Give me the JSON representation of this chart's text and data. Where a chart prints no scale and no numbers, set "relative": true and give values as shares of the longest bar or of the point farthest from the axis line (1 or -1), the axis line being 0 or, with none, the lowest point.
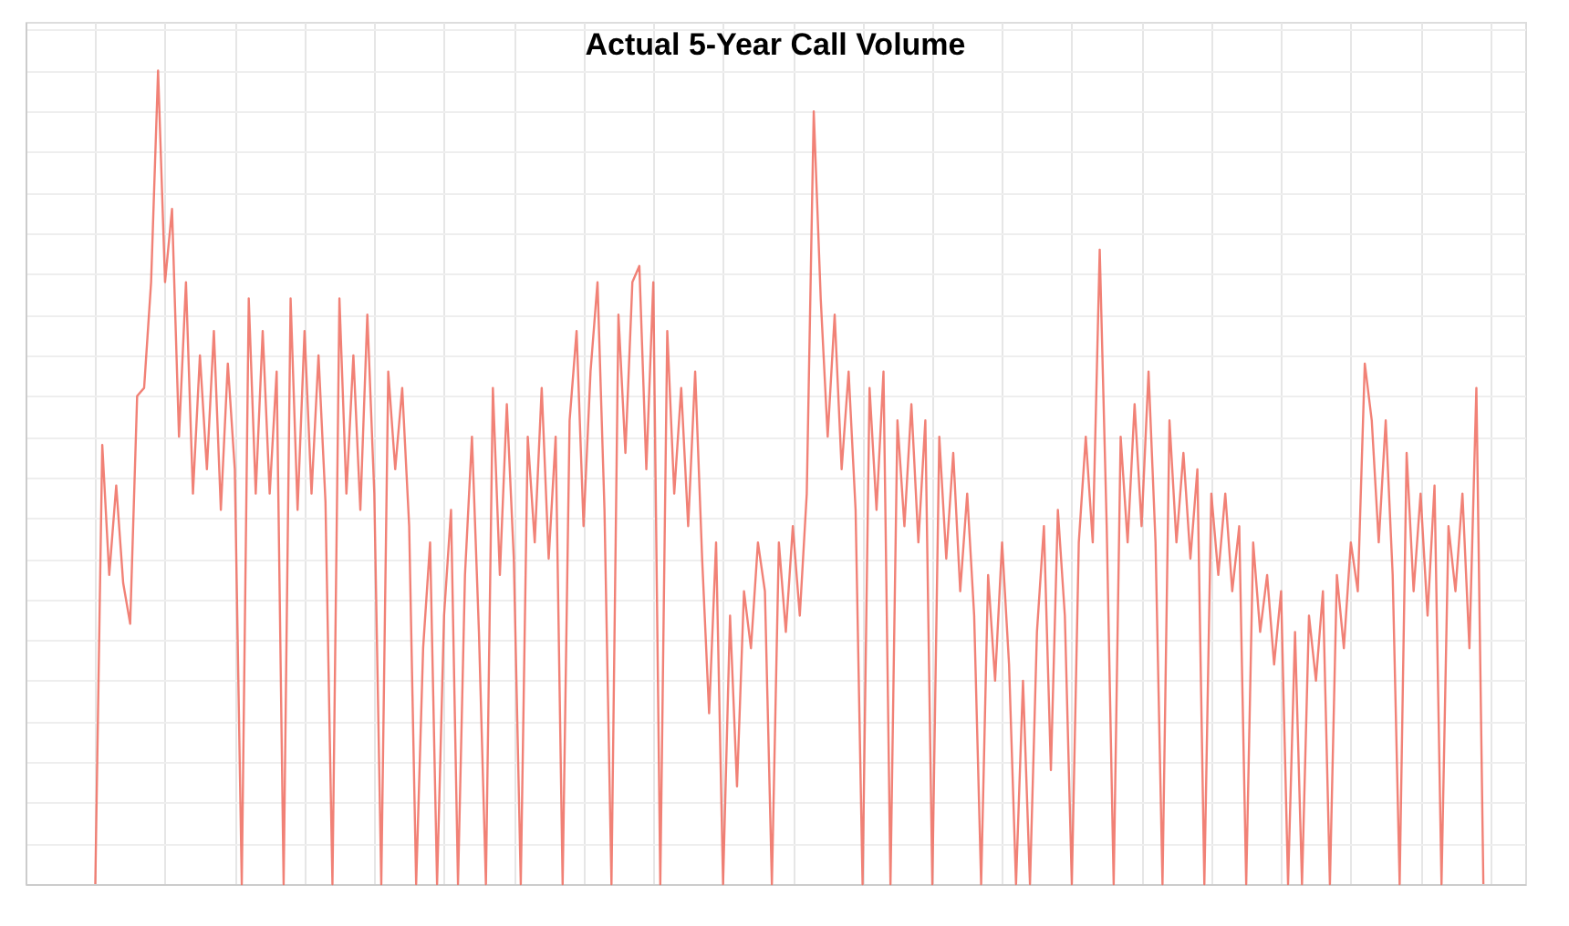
{
  "chart_data": {
    "type": "line",
    "title": "Actual 5-Year Call Volume",
    "relative": true,
    "grid": true,
    "tick_labels": false,
    "categories": [
      null,
      null,
      null,
      null,
      null,
      null,
      null,
      null,
      null,
      null,
      null,
      null,
      null,
      null,
      null,
      null,
      null,
      null,
      null,
      null,
      null,
      null,
      null,
      null,
      null,
      null,
      null,
      null,
      null,
      null,
      null,
      null,
      null,
      null,
      null,
      null,
      null,
      null,
      null,
      null,
      null,
      null,
      null,
      null,
      null,
      null,
      null,
      null,
      null,
      null,
      null,
      null,
      null,
      null,
      null,
      null,
      null,
      null,
      null,
      null,
      null,
      null,
      null,
      null,
      null,
      null,
      null,
      null,
      null,
      null,
      null,
      null,
      null,
      null,
      null,
      null,
      null,
      null,
      null,
      null,
      null,
      null,
      null,
      null,
      null,
      null,
      null,
      null,
      null,
      null,
      null,
      null,
      null,
      null,
      null,
      null,
      null,
      null,
      null,
      null,
      null,
      null,
      null,
      null,
      null,
      null,
      null,
      null,
      null,
      null,
      null,
      null,
      null,
      null,
      null,
      null,
      null,
      null,
      null,
      null,
      null,
      null,
      null,
      null,
      null,
      null,
      null,
      null,
      null,
      null,
      null,
      null,
      null,
      null,
      null,
      null,
      null,
      null,
      null,
      null,
      null,
      null,
      null,
      null,
      null,
      null,
      null,
      null,
      null,
      null,
      null,
      null,
      null,
      null,
      null,
      null,
      null,
      null,
      null,
      null,
      null,
      null,
      null,
      null,
      null,
      null,
      null,
      null,
      null,
      null,
      null,
      null,
      null,
      null,
      null,
      null,
      null,
      null,
      null,
      null,
      null,
      null,
      null,
      null,
      null,
      null,
      null,
      null,
      null,
      null,
      null,
      null,
      null,
      null,
      null,
      null,
      null,
      null,
      null,
      null
    ],
    "series": [
      {
        "color": "#ee6b5e",
        "values": [
          0,
          0.54,
          0.38,
          0.49,
          0.37,
          0.32,
          0.6,
          0.61,
          0.74,
          1.0,
          0.74,
          0.83,
          0.55,
          0.74,
          0.48,
          0.65,
          0.51,
          0.68,
          0.46,
          0.64,
          0.51,
          0,
          0.72,
          0.48,
          0.68,
          0.48,
          0.63,
          0,
          0.72,
          0.46,
          0.68,
          0.48,
          0.65,
          0.47,
          0,
          0.72,
          0.48,
          0.65,
          0.46,
          0.7,
          0.48,
          0,
          0.63,
          0.51,
          0.61,
          0.44,
          0,
          0.29,
          0.42,
          0,
          0.33,
          0.46,
          0,
          0.38,
          0.55,
          0.31,
          0,
          0.61,
          0.38,
          0.59,
          0.4,
          0,
          0.55,
          0.42,
          0.61,
          0.4,
          0.55,
          0,
          0.57,
          0.68,
          0.44,
          0.63,
          0.74,
          0.46,
          0,
          0.7,
          0.53,
          0.74,
          0.76,
          0.51,
          0.74,
          0,
          0.68,
          0.48,
          0.61,
          0.44,
          0.63,
          0.4,
          0.21,
          0.42,
          0,
          0.33,
          0.12,
          0.36,
          0.29,
          0.42,
          0.36,
          0,
          0.42,
          0.31,
          0.44,
          0.33,
          0.48,
          0.95,
          0.72,
          0.55,
          0.7,
          0.51,
          0.63,
          0.46,
          0,
          0.61,
          0.46,
          0.63,
          0,
          0.57,
          0.44,
          0.59,
          0.42,
          0.57,
          0,
          0.55,
          0.4,
          0.53,
          0.36,
          0.48,
          0.33,
          0,
          0.38,
          0.25,
          0.42,
          0.27,
          0,
          0.25,
          0,
          0.31,
          0.44,
          0.14,
          0.46,
          0.33,
          0,
          0.42,
          0.55,
          0.42,
          0.78,
          0.44,
          0,
          0.55,
          0.42,
          0.59,
          0.44,
          0.63,
          0.42,
          0,
          0.57,
          0.42,
          0.53,
          0.4,
          0.51,
          0,
          0.48,
          0.38,
          0.48,
          0.36,
          0.44,
          0,
          0.42,
          0.31,
          0.38,
          0.27,
          0.36,
          0,
          0.31,
          0,
          0.33,
          0.25,
          0.36,
          0,
          0.38,
          0.29,
          0.42,
          0.36,
          0.64,
          0.57,
          0.42,
          0.57,
          0.38,
          0,
          0.53,
          0.36,
          0.48,
          0.33,
          0.49,
          0,
          0.44,
          0.36,
          0.48,
          0.29,
          0.61,
          0
        ]
      }
    ]
  }
}
